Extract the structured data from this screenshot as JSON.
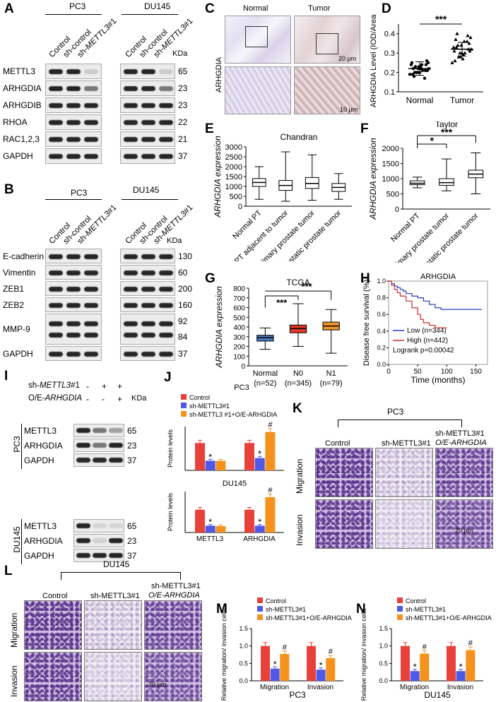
{
  "panels": {
    "A": {
      "label": "A",
      "groups": [
        "PC3",
        "DU145"
      ],
      "lanes": [
        "Control",
        "sh-control",
        "sh-METTL3#1"
      ],
      "kda_label": "KDa",
      "rows": [
        {
          "name": "METTL3",
          "kda": "65"
        },
        {
          "name": "ARHGDIA",
          "kda": "23"
        },
        {
          "name": "ARHGDIB",
          "kda": "23"
        },
        {
          "name": "RHOA",
          "kda": "22"
        },
        {
          "name": "RAC1,2,3",
          "kda": "21"
        },
        {
          "name": "GAPDH",
          "kda": "37"
        }
      ]
    },
    "B": {
      "label": "B",
      "groups": [
        "PC3",
        "DU145"
      ],
      "lanes": [
        "Control",
        "sh-control",
        "sh-METTL3#1"
      ],
      "kda_label": "KDa",
      "rows": [
        {
          "name": "E-cadherin",
          "kda": "130"
        },
        {
          "name": "Vimentin",
          "kda": "60"
        },
        {
          "name": "ZEB1",
          "kda": "200"
        },
        {
          "name": "ZEB2",
          "kda": "160"
        },
        {
          "name": "MMP-9",
          "kda": "92"
        },
        {
          "name": "GAPDH",
          "kda": "37"
        }
      ],
      "extra_kda": "84"
    },
    "C": {
      "label": "C",
      "cols": [
        "Normal",
        "Tumor"
      ],
      "row_label": "ARHGDIA",
      "scale1": "20 μm",
      "scale2": "10 μm"
    },
    "I": {
      "label": "I",
      "rows": [
        {
          "name": "sh-METTL3#1",
          "signs": [
            "-",
            "+",
            "+"
          ]
        },
        {
          "name": "O/E-ARHGDIA",
          "signs": [
            "-",
            "-",
            "+"
          ]
        }
      ],
      "kda_label": "KDa",
      "pc3_label": "PC3",
      "du_label": "DU145",
      "blots": [
        {
          "name": "METTL3",
          "kda": "65"
        },
        {
          "name": "ARHGDIA",
          "kda": "23"
        },
        {
          "name": "GAPDH",
          "kda": "37"
        }
      ]
    },
    "K": {
      "label": "K",
      "group": "PC3",
      "cols": [
        "Control",
        "sh-METTL3#1",
        "sh-METTL3#1",
        "O/E-ARHGDIA"
      ],
      "rows": [
        "Migration",
        "Invasion"
      ],
      "scale": "20 μm"
    },
    "L": {
      "label": "L",
      "group": "DU145",
      "cols": [
        "Control",
        "sh-METTL3#1",
        "sh-METTL3#1",
        "O/E-ARHGDIA"
      ],
      "rows": [
        "Migration",
        "Invasion"
      ],
      "scale": "20 μm"
    },
    "Dlabel": "D",
    "Elabel": "E",
    "Flabel": "F",
    "Glabel": "G",
    "Hlabel": "H",
    "Jlabel": "J",
    "Mlabel": "M",
    "Nlabel": "N"
  },
  "chart_data": [
    {
      "id": "D",
      "type": "scatter",
      "title": "",
      "ylabel": "ARHGDIA Level (IOD/Areas)",
      "categories": [
        "Normal",
        "Tumor"
      ],
      "yticks": [
        "0.1",
        "0.2",
        "0.3",
        "0.4"
      ],
      "ylim": [
        0.1,
        0.45
      ],
      "means": [
        0.22,
        0.32
      ],
      "sig": "***"
    },
    {
      "id": "E",
      "type": "boxplot",
      "title": "Chandran",
      "ylabel": "ARHGDIA expression",
      "categories": [
        "Normal PT",
        "PT adjacent to tumor",
        "Primary prostate tumor",
        "Metastatic prostate tumor"
      ],
      "yticks": [
        "0",
        "500",
        "1000",
        "1500",
        "2000",
        "2500",
        "3000"
      ],
      "ylim": [
        0,
        3000
      ],
      "boxes": [
        {
          "min": 350,
          "q1": 1000,
          "med": 1200,
          "q3": 1400,
          "max": 2000
        },
        {
          "min": 250,
          "q1": 800,
          "med": 1050,
          "q3": 1300,
          "max": 2750
        },
        {
          "min": 300,
          "q1": 900,
          "med": 1150,
          "q3": 1450,
          "max": 2600
        },
        {
          "min": 350,
          "q1": 750,
          "med": 950,
          "q3": 1150,
          "max": 1650
        }
      ]
    },
    {
      "id": "F",
      "type": "boxplot",
      "title": "Taylor",
      "ylabel": "ARHGDIA expression",
      "categories": [
        "Normal PT",
        "Primary prostate tumor",
        "Metastatic prostate tumor"
      ],
      "yticks": [
        "0",
        "500",
        "1000",
        "1500",
        "2000"
      ],
      "ylim": [
        0,
        2000
      ],
      "boxes": [
        {
          "min": 700,
          "q1": 800,
          "med": 850,
          "q3": 930,
          "max": 1050
        },
        {
          "min": 600,
          "q1": 780,
          "med": 870,
          "q3": 1000,
          "max": 1650
        },
        {
          "min": 500,
          "q1": 1030,
          "med": 1150,
          "q3": 1280,
          "max": 1850
        }
      ],
      "sig": [
        "*",
        "***"
      ]
    },
    {
      "id": "G",
      "type": "boxplot",
      "title": "TCGA",
      "ylabel": "ARHGDIA expression",
      "categories": [
        "Normal",
        "N0",
        "N1"
      ],
      "sublabels": [
        "(n=52)",
        "(n=345)",
        "(n=79)"
      ],
      "yticks": [
        "0",
        "100",
        "200",
        "300",
        "400",
        "500",
        "600",
        "700",
        "800"
      ],
      "ylim": [
        0,
        800
      ],
      "colors": [
        "#4a7fc1",
        "#e03a2a",
        "#f0962c"
      ],
      "boxes": [
        {
          "min": 170,
          "q1": 255,
          "med": 290,
          "q3": 315,
          "max": 390
        },
        {
          "min": 200,
          "q1": 340,
          "med": 385,
          "q3": 420,
          "max": 640
        },
        {
          "min": 130,
          "q1": 370,
          "med": 410,
          "q3": 450,
          "max": 580
        }
      ],
      "sig": [
        "***",
        "***"
      ]
    },
    {
      "id": "H",
      "type": "line",
      "title": "ARHGDIA",
      "ylabel": "Disease free survival (%)",
      "xlabel": "Time (months)",
      "xticks": [
        "0",
        "50",
        "100",
        "150"
      ],
      "yticks": [
        "0.0",
        "0.2",
        "0.4",
        "0.6",
        "0.8",
        "1.0"
      ],
      "xlim": [
        0,
        170
      ],
      "ylim": [
        0,
        1
      ],
      "series": [
        {
          "name": "Low (n=344)",
          "color": "#1f3fbf",
          "points": [
            [
              0,
              1
            ],
            [
              5,
              0.97
            ],
            [
              10,
              0.94
            ],
            [
              15,
              0.92
            ],
            [
              20,
              0.9
            ],
            [
              25,
              0.88
            ],
            [
              30,
              0.85
            ],
            [
              40,
              0.82
            ],
            [
              50,
              0.8
            ],
            [
              60,
              0.76
            ],
            [
              70,
              0.72
            ],
            [
              80,
              0.68
            ],
            [
              90,
              0.66
            ],
            [
              110,
              0.66
            ],
            [
              160,
              0.66
            ]
          ]
        },
        {
          "name": "High (n=442)",
          "color": "#d22a2a",
          "points": [
            [
              0,
              1
            ],
            [
              5,
              0.95
            ],
            [
              10,
              0.9
            ],
            [
              15,
              0.86
            ],
            [
              20,
              0.82
            ],
            [
              30,
              0.76
            ],
            [
              40,
              0.68
            ],
            [
              50,
              0.6
            ],
            [
              55,
              0.54
            ],
            [
              60,
              0.5
            ],
            [
              70,
              0.47
            ],
            [
              80,
              0.44
            ],
            [
              100,
              0.44
            ]
          ]
        }
      ],
      "annotation": "Logrank p=0.00042"
    },
    {
      "id": "J1",
      "type": "bar",
      "title": "PC3",
      "ylabel": "Protein levels",
      "categories": [
        "METTL3",
        "ARHGDIA"
      ],
      "series": [
        {
          "name": "Control",
          "color": "#e8413a",
          "values": [
            1.0,
            1.0
          ]
        },
        {
          "name": "sh-METTL3#1",
          "color": "#5058e8",
          "values": [
            0.35,
            0.45
          ]
        },
        {
          "name": "sh-METTL3 #1+O/E-ARHGDIA",
          "color": "#f5921e",
          "values": [
            0.35,
            1.4
          ]
        }
      ],
      "ylim": [
        0,
        1.6
      ]
    },
    {
      "id": "J2",
      "type": "bar",
      "title": "DU145",
      "ylabel": "Protein levels",
      "categories": [
        "METTL3",
        "ARHGDIA"
      ],
      "series": [
        {
          "name": "Control",
          "color": "#e8413a",
          "values": [
            1.0,
            1.0
          ]
        },
        {
          "name": "sh-METTL3#1",
          "color": "#5058e8",
          "values": [
            0.3,
            0.3
          ]
        },
        {
          "name": "sh-METTL3 #1+O/E-ARHGDIA",
          "color": "#f5921e",
          "values": [
            0.28,
            1.55
          ]
        }
      ],
      "ylim": [
        0,
        1.8
      ]
    },
    {
      "id": "M",
      "type": "bar",
      "title": "PC3",
      "ylabel": "Relative migration/ invasion cells",
      "categories": [
        "Migration",
        "Invasion"
      ],
      "yticks": [
        "0.0",
        "0.5",
        "1.0",
        "1.5"
      ],
      "ylim": [
        0,
        1.5
      ],
      "series": [
        {
          "name": "Control",
          "color": "#e8413a",
          "values": [
            1.0,
            1.0
          ]
        },
        {
          "name": "sh-METTL3#1",
          "color": "#5058e8",
          "values": [
            0.35,
            0.32
          ]
        },
        {
          "name": "sh-METTL3#1+O/E-ARHGDIA",
          "color": "#f5921e",
          "values": [
            0.77,
            0.65
          ]
        }
      ]
    },
    {
      "id": "N",
      "type": "bar",
      "title": "DU145",
      "ylabel": "Relative migration/ invasion cells",
      "categories": [
        "Migration",
        "Invasion"
      ],
      "yticks": [
        "0.0",
        "0.5",
        "1.0",
        "1.5"
      ],
      "ylim": [
        0,
        1.5
      ],
      "series": [
        {
          "name": "Control",
          "color": "#e8413a",
          "values": [
            1.0,
            1.0
          ]
        },
        {
          "name": "sh-METTL3#1",
          "color": "#5058e8",
          "values": [
            0.28,
            0.28
          ]
        },
        {
          "name": "sh-METTL3#1+O/E-ARHGDIA",
          "color": "#f5921e",
          "values": [
            0.78,
            0.88
          ]
        }
      ]
    }
  ]
}
